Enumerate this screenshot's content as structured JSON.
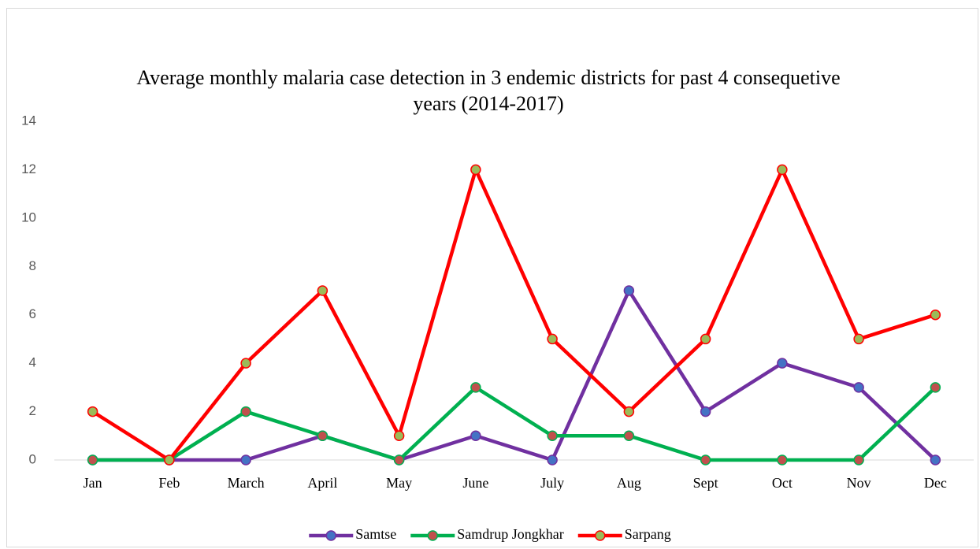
{
  "chart_data": {
    "type": "line",
    "title": "Average monthly malaria case detection in 3 endemic districts for past 4 consequetive years (2014-2017)",
    "categories": [
      "Jan",
      "Feb",
      "March",
      "April",
      "May",
      "June",
      "July",
      "Aug",
      "Sept",
      "Oct",
      "Nov",
      "Dec"
    ],
    "series": [
      {
        "name": "Samtse",
        "color": "#7030a0",
        "marker_color": "#4472c4",
        "values": [
          0,
          0,
          0,
          1,
          0,
          1,
          0,
          7,
          2,
          4,
          3,
          0
        ]
      },
      {
        "name": "Samdrup Jongkhar",
        "color": "#00b050",
        "marker_color": "#c0504d",
        "values": [
          0,
          0,
          2,
          1,
          0,
          3,
          1,
          1,
          0,
          0,
          0,
          3
        ]
      },
      {
        "name": "Sarpang",
        "color": "#ff0000",
        "marker_color": "#9bbb59",
        "values": [
          2,
          0,
          4,
          7,
          1,
          12,
          5,
          2,
          5,
          12,
          5,
          6
        ]
      }
    ],
    "ylim": [
      0,
      14
    ],
    "yticks": [
      0,
      2,
      4,
      6,
      8,
      10,
      12,
      14
    ],
    "grid": false,
    "legend": "bottom"
  }
}
